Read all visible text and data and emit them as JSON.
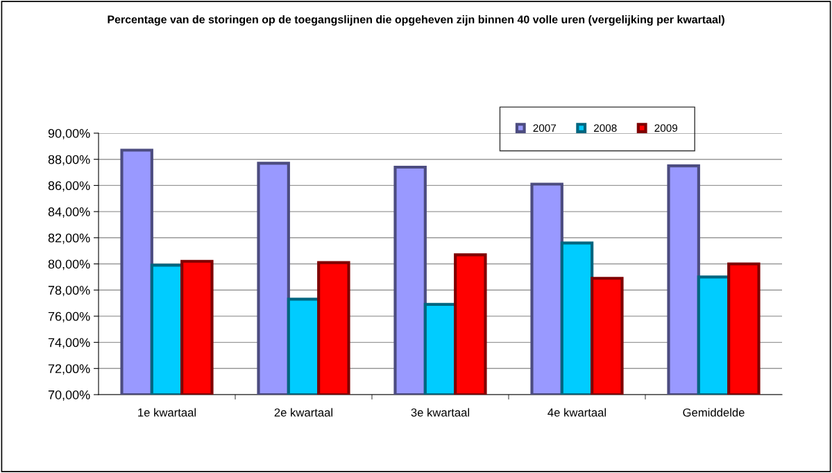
{
  "chart_data": {
    "type": "bar",
    "title": "Percentage van de storingen op de toegangslijnen die opgeheven zijn binnen 40 volle uren (vergelijking per kwartaal)",
    "categories": [
      "1e kwartaal",
      "2e kwartaal",
      "3e kwartaal",
      "4e kwartaal",
      "Gemiddelde"
    ],
    "series": [
      {
        "name": "2007",
        "color": "#9999ff",
        "values": [
          88.7,
          87.7,
          87.4,
          86.1,
          87.5
        ]
      },
      {
        "name": "2008",
        "color": "#00ccff",
        "values": [
          79.9,
          77.3,
          76.9,
          81.6,
          79.0
        ]
      },
      {
        "name": "2009",
        "color": "#ff0000",
        "values": [
          80.2,
          80.1,
          80.7,
          78.9,
          80.0
        ]
      }
    ],
    "ylim": [
      70,
      90
    ],
    "yticks": [
      {
        "value": 70,
        "label": "70,00%"
      },
      {
        "value": 72,
        "label": "72,00%"
      },
      {
        "value": 74,
        "label": "74,00%"
      },
      {
        "value": 76,
        "label": "76,00%"
      },
      {
        "value": 78,
        "label": "78,00%"
      },
      {
        "value": 80,
        "label": "80,00%"
      },
      {
        "value": 82,
        "label": "82,00%"
      },
      {
        "value": 84,
        "label": "84,00%"
      },
      {
        "value": 86,
        "label": "86,00%"
      },
      {
        "value": 88,
        "label": "88,00%"
      },
      {
        "value": 90,
        "label": "90,00%"
      }
    ],
    "grid": "y",
    "legend": "top right"
  }
}
